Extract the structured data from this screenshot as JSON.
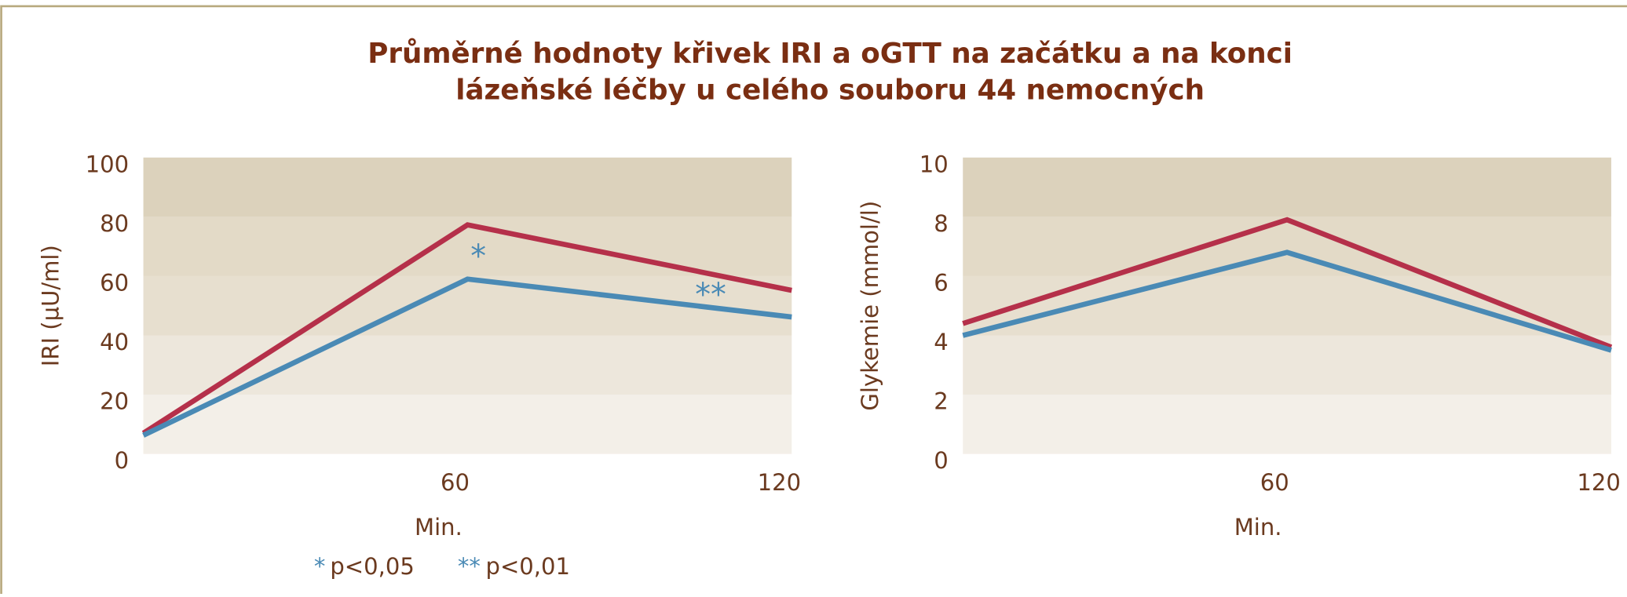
{
  "title": [
    "Průměrné hodnoty křivek IRI a oGTT na začátku a na konci",
    "lázeňské léčby u celého souboru 44 nemocných"
  ],
  "footnotes": [
    {
      "mark": "*",
      "text": "p<0,05"
    },
    {
      "mark": "**",
      "text": "p<0,01"
    }
  ],
  "chart_data": [
    {
      "type": "line",
      "ylabel": "IRI (µU/ml)",
      "xlabel": "Min.",
      "x": [
        0,
        60,
        120
      ],
      "xlim": [
        0,
        120
      ],
      "xticks": [
        60,
        120
      ],
      "ylim": [
        0,
        100
      ],
      "yticks": [
        0,
        20,
        40,
        60,
        80,
        100
      ],
      "series": [
        {
          "color": "#b5304a",
          "values": [
            7,
            77.3,
            55.2
          ]
        },
        {
          "color": "#4a8ab5",
          "values": [
            6.3,
            59,
            46.2
          ]
        }
      ],
      "annotations": [
        {
          "text": "*",
          "x": 62,
          "y": 66
        },
        {
          "text": "**",
          "x": 105,
          "y": 53
        }
      ]
    },
    {
      "type": "line",
      "ylabel": "Glykemie (mmol/l)",
      "xlabel": "Min.",
      "x": [
        0,
        60,
        120
      ],
      "xlim": [
        0,
        120
      ],
      "xticks": [
        60,
        120
      ],
      "ylim": [
        0,
        10
      ],
      "yticks": [
        0,
        2,
        4,
        6,
        8,
        10
      ],
      "series": [
        {
          "color": "#b5304a",
          "values": [
            4.4,
            7.9,
            3.6
          ]
        },
        {
          "color": "#4a8ab5",
          "values": [
            4.0,
            6.8,
            3.5
          ]
        }
      ]
    }
  ]
}
